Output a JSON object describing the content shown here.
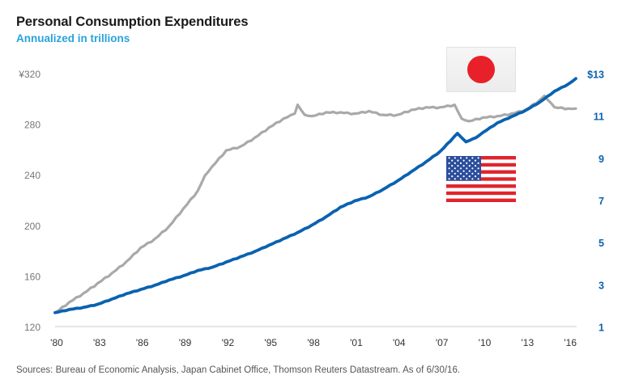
{
  "title": "Personal Consumption Expenditures",
  "subtitle": "Annualized in trillions",
  "source": "Sources: Bureau of Economic Analysis, Japan Cabinet Office, Thomson Reuters Datastream. As of 6/30/16.",
  "colors": {
    "japan_line": "#a9a9a9",
    "us_line": "#0a62b0",
    "subtitle": "#27a3dc",
    "axis_line": "#cccccc"
  },
  "flags": {
    "japan": "japan-flag-icon",
    "us": "us-flag-icon"
  },
  "chart_data": {
    "type": "line",
    "title": "Personal Consumption Expenditures",
    "subtitle": "Annualized in trillions",
    "xlabel": "",
    "x_range": [
      1980,
      2016.5
    ],
    "x_ticks": [
      1980,
      1983,
      1986,
      1989,
      1992,
      1995,
      1998,
      2001,
      2004,
      2007,
      2010,
      2013,
      2016
    ],
    "x_tick_labels": [
      "'80",
      "'83",
      "'86",
      "'89",
      "'92",
      "'95",
      "'98",
      "'01",
      "'04",
      "'07",
      "'10",
      "'13",
      "'16"
    ],
    "y_left": {
      "label": "Japan (¥ trillions)",
      "range": [
        120,
        320
      ],
      "ticks": [
        120,
        160,
        200,
        240,
        280,
        320
      ],
      "tick_labels": [
        "120",
        "160",
        "200",
        "240",
        "280",
        "¥320"
      ]
    },
    "y_right": {
      "label": "US ($ trillions)",
      "range": [
        1,
        13
      ],
      "ticks": [
        1,
        3,
        5,
        7,
        9,
        11,
        13
      ],
      "tick_labels": [
        "1",
        "3",
        "5",
        "7",
        "9",
        "11",
        "$13"
      ]
    },
    "grid": false,
    "legend": "flag icons: Japan top-right, US middle-right",
    "series": [
      {
        "name": "Japan",
        "axis": "left",
        "x": [
          1980,
          1981,
          1982,
          1983,
          1984,
          1985,
          1986,
          1987,
          1988,
          1989,
          1990,
          1990.5,
          1991,
          1992,
          1993,
          1994,
          1995,
          1996,
          1996.8,
          1997,
          1997.5,
          1998,
          1999,
          2000,
          2001,
          2002,
          2003,
          2004,
          2005,
          2006,
          2007,
          2008,
          2008.5,
          2009,
          2010,
          2011,
          2012,
          2013,
          2014,
          2014.3,
          2015,
          2016,
          2016.5
        ],
        "values": [
          131.5,
          140,
          147,
          155,
          163,
          172,
          183,
          190,
          200,
          214,
          228,
          240,
          247,
          260,
          263,
          270,
          278,
          285,
          289,
          296,
          288,
          287,
          290,
          290,
          289,
          291,
          288,
          288,
          292,
          294,
          294,
          296,
          285,
          283,
          286,
          287,
          289,
          292,
          300,
          303,
          294,
          293,
          293
        ]
      },
      {
        "name": "United States",
        "axis": "right",
        "x": [
          1980,
          1981,
          1982,
          1983,
          1984,
          1985,
          1986,
          1987,
          1988,
          1989,
          1990,
          1991,
          1992,
          1993,
          1994,
          1995,
          1996,
          1997,
          1998,
          1999,
          2000,
          2001,
          2002,
          2003,
          2004,
          2005,
          2006,
          2007,
          2008.2,
          2008.8,
          2009.5,
          2010,
          2011,
          2012,
          2013,
          2014,
          2015,
          2016,
          2016.5
        ],
        "values": [
          1.7,
          1.85,
          1.95,
          2.1,
          2.35,
          2.6,
          2.8,
          3.0,
          3.25,
          3.45,
          3.7,
          3.85,
          4.1,
          4.35,
          4.6,
          4.9,
          5.2,
          5.5,
          5.85,
          6.25,
          6.7,
          7.0,
          7.2,
          7.55,
          7.95,
          8.4,
          8.85,
          9.35,
          10.2,
          9.8,
          10.0,
          10.25,
          10.7,
          11.0,
          11.3,
          11.7,
          12.2,
          12.55,
          12.8
        ]
      }
    ]
  }
}
